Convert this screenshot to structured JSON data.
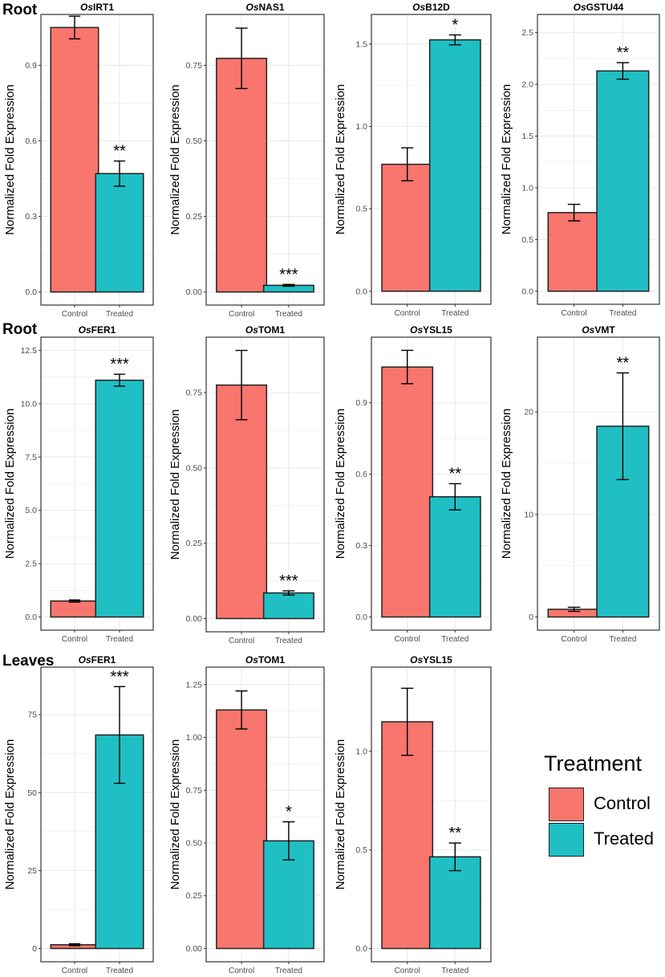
{
  "sections": [
    {
      "label": "Root"
    },
    {
      "label": "Root"
    },
    {
      "label": "Leaves"
    }
  ],
  "colors": {
    "control": "#F8766D",
    "treated": "#1FBFC4",
    "grid": "#EBEBEB",
    "border": "#333333"
  },
  "legend": {
    "title": "Treatment",
    "items": [
      {
        "label": "Control",
        "color": "#F8766D"
      },
      {
        "label": "Treated",
        "color": "#1FBFC4"
      }
    ]
  },
  "chart_data": [
    {
      "type": "bar",
      "title_prefix": "Os",
      "title_suffix": "IRT1",
      "ylabel": "Normalized Fold Expression",
      "categories": [
        "Control",
        "Treated"
      ],
      "values": [
        1.05,
        0.47
      ],
      "errors": [
        0.045,
        0.05
      ],
      "significance": [
        "",
        "**"
      ],
      "ylim": [
        0,
        1.05
      ],
      "yticks": [
        0,
        0.3,
        0.6,
        0.9
      ],
      "ytick_labels": [
        "0.0",
        "0.3",
        "0.6",
        "0.9"
      ]
    },
    {
      "type": "bar",
      "title_prefix": "Os",
      "title_suffix": "NAS1",
      "ylabel": "Normalized Fold Expression",
      "categories": [
        "Control",
        "Treated"
      ],
      "values": [
        0.773,
        0.022
      ],
      "errors": [
        0.1,
        0.003
      ],
      "significance": [
        "",
        "***"
      ],
      "ylim": [
        0,
        0.875
      ],
      "yticks": [
        0,
        0.25,
        0.5,
        0.75
      ],
      "ytick_labels": [
        "0.00",
        "0.25",
        "0.50",
        "0.75"
      ]
    },
    {
      "type": "bar",
      "title_prefix": "Os",
      "title_suffix": "B12D",
      "ylabel": "Normalized Fold Expression",
      "categories": [
        "Control",
        "Treated"
      ],
      "values": [
        0.77,
        1.525
      ],
      "errors": [
        0.1,
        0.03
      ],
      "significance": [
        "",
        "*"
      ],
      "ylim": [
        0,
        1.6
      ],
      "yticks": [
        0,
        0.5,
        1.0,
        1.5
      ],
      "ytick_labels": [
        "0.0",
        "0.5",
        "1.0",
        "1.5"
      ]
    },
    {
      "type": "bar",
      "title_prefix": "Os",
      "title_suffix": "GSTU44",
      "ylabel": "Normalized Fold Expression",
      "categories": [
        "Control",
        "Treated"
      ],
      "values": [
        0.76,
        2.13
      ],
      "errors": [
        0.08,
        0.08
      ],
      "significance": [
        "",
        "**"
      ],
      "ylim": [
        0,
        2.55
      ],
      "yticks": [
        0,
        0.5,
        1.0,
        1.5,
        2.0,
        2.5
      ],
      "ytick_labels": [
        "0.0",
        "0.5",
        "1.0",
        "1.5",
        "2.0",
        "2.5"
      ]
    },
    {
      "type": "bar",
      "title_prefix": "Os",
      "title_suffix": "FER1",
      "ylabel": "Normalized Fold Expression",
      "categories": [
        "Control",
        "Treated"
      ],
      "values": [
        0.75,
        11.1
      ],
      "errors": [
        0.05,
        0.28
      ],
      "significance": [
        "",
        "***"
      ],
      "ylim": [
        0,
        12.5
      ],
      "yticks": [
        0,
        2.5,
        5.0,
        7.5,
        10.0,
        12.5
      ],
      "ytick_labels": [
        "0.0",
        "2.5",
        "5.0",
        "7.5",
        "10.0",
        "12.5"
      ]
    },
    {
      "type": "bar",
      "title_prefix": "Os",
      "title_suffix": "TOM1",
      "ylabel": "Normalized Fold Expression",
      "categories": [
        "Control",
        "Treated"
      ],
      "values": [
        0.775,
        0.085
      ],
      "errors": [
        0.115,
        0.007
      ],
      "significance": [
        "",
        "***"
      ],
      "ylim": [
        0,
        0.89
      ],
      "yticks": [
        0,
        0.25,
        0.5,
        0.75
      ],
      "ytick_labels": [
        "0.00",
        "0.25",
        "0.50",
        "0.75"
      ]
    },
    {
      "type": "bar",
      "title_prefix": "Os",
      "title_suffix": "YSL15",
      "ylabel": "Normalized Fold Expression",
      "categories": [
        "Control",
        "Treated"
      ],
      "values": [
        1.05,
        0.505
      ],
      "errors": [
        0.07,
        0.055
      ],
      "significance": [
        "",
        "**"
      ],
      "ylim": [
        0,
        1.12
      ],
      "yticks": [
        0,
        0.3,
        0.6,
        0.9
      ],
      "ytick_labels": [
        "0.0",
        "0.3",
        "0.6",
        "0.9"
      ]
    },
    {
      "type": "bar",
      "title_prefix": "Os",
      "title_suffix": "VMT",
      "ylabel": "Normalized Fold Expression",
      "categories": [
        "Control",
        "Treated"
      ],
      "values": [
        0.75,
        18.6
      ],
      "errors": [
        0.2,
        5.2
      ],
      "significance": [
        "",
        "**"
      ],
      "ylim": [
        0,
        26
      ],
      "yticks": [
        0,
        10,
        20
      ],
      "ytick_labels": [
        "0",
        "10",
        "20"
      ]
    },
    {
      "type": "bar",
      "title_prefix": "Os",
      "title_suffix": "FER1",
      "ylabel": "Normalized Fold Expression",
      "categories": [
        "Control",
        "Treated"
      ],
      "values": [
        1.2,
        68.5
      ],
      "errors": [
        0.3,
        15.5
      ],
      "significance": [
        "",
        "***"
      ],
      "ylim": [
        0,
        86
      ],
      "yticks": [
        0,
        25,
        50,
        75
      ],
      "ytick_labels": [
        "0",
        "25",
        "50",
        "75"
      ]
    },
    {
      "type": "bar",
      "title_prefix": "Os",
      "title_suffix": "TOM1",
      "ylabel": "Normalized Fold Expression",
      "categories": [
        "Control",
        "Treated"
      ],
      "values": [
        1.13,
        0.51
      ],
      "errors": [
        0.09,
        0.09
      ],
      "significance": [
        "",
        "*"
      ],
      "ylim": [
        0,
        1.27
      ],
      "yticks": [
        0,
        0.25,
        0.5,
        0.75,
        1.0,
        1.25
      ],
      "ytick_labels": [
        "0.00",
        "0.25",
        "0.50",
        "0.75",
        "1.00",
        "1.25"
      ]
    },
    {
      "type": "bar",
      "title_prefix": "Os",
      "title_suffix": "YSL15",
      "ylabel": "Normalized Fold Expression",
      "categories": [
        "Control",
        "Treated"
      ],
      "values": [
        1.15,
        0.465
      ],
      "errors": [
        0.17,
        0.07
      ],
      "significance": [
        "",
        "**"
      ],
      "ylim": [
        0,
        1.36
      ],
      "yticks": [
        0,
        0.5,
        1.0
      ],
      "ytick_labels": [
        "0.0",
        "0.5",
        "1.0"
      ]
    }
  ]
}
